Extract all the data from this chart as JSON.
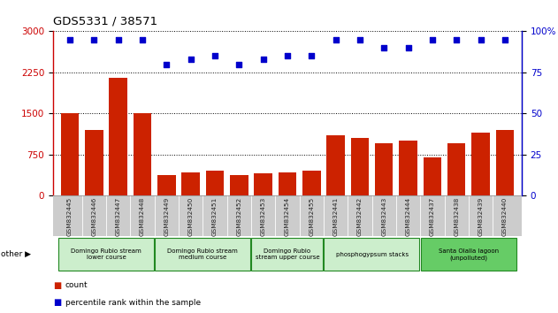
{
  "title": "GDS5331 / 38571",
  "samples": [
    "GSM832445",
    "GSM832446",
    "GSM832447",
    "GSM832448",
    "GSM832449",
    "GSM832450",
    "GSM832451",
    "GSM832452",
    "GSM832453",
    "GSM832454",
    "GSM832455",
    "GSM832441",
    "GSM832442",
    "GSM832443",
    "GSM832444",
    "GSM832437",
    "GSM832438",
    "GSM832439",
    "GSM832440"
  ],
  "counts": [
    1500,
    1200,
    2150,
    1500,
    380,
    420,
    460,
    380,
    400,
    420,
    460,
    1100,
    1050,
    950,
    1000,
    700,
    950,
    1150,
    1200
  ],
  "percentiles": [
    95,
    95,
    95,
    95,
    80,
    83,
    85,
    80,
    83,
    85,
    85,
    95,
    95,
    90,
    90,
    95,
    95,
    95,
    95
  ],
  "ylim_left": [
    0,
    3000
  ],
  "ylim_right": [
    0,
    100
  ],
  "yticks_left": [
    0,
    750,
    1500,
    2250,
    3000
  ],
  "yticks_right": [
    0,
    25,
    50,
    75,
    100
  ],
  "groups": [
    {
      "label": "Domingo Rubio stream\nlower course",
      "start": 0,
      "end": 4,
      "color": "#cceecc"
    },
    {
      "label": "Domingo Rubio stream\nmedium course",
      "start": 4,
      "end": 8,
      "color": "#cceecc"
    },
    {
      "label": "Domingo Rubio\nstream upper course",
      "start": 8,
      "end": 11,
      "color": "#cceecc"
    },
    {
      "label": "phosphogypsum stacks",
      "start": 11,
      "end": 15,
      "color": "#cceecc"
    },
    {
      "label": "Santa Olalla lagoon\n(unpolluted)",
      "start": 15,
      "end": 19,
      "color": "#66cc66"
    }
  ],
  "bar_color": "#cc2200",
  "dot_color": "#0000cc",
  "title_color": "#000000",
  "left_axis_color": "#cc0000",
  "right_axis_color": "#0000cc",
  "grid_color": "#000000",
  "tick_bg_color": "#cccccc",
  "group_border_color": "#228822"
}
